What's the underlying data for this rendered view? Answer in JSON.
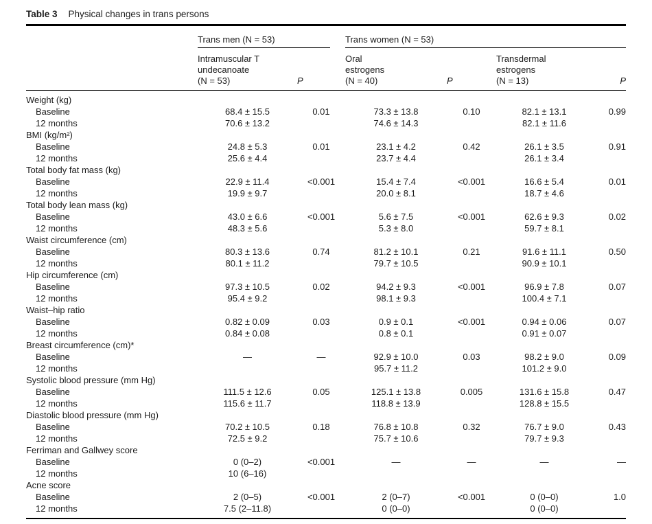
{
  "caption": {
    "label": "Table 3",
    "title": "Physical changes in trans persons"
  },
  "table": {
    "groups": [
      "Trans men (N = 53)",
      "Trans women (N = 53)"
    ],
    "columns": [
      "Intramuscular T\nundecanoate\n(N = 53)",
      "P",
      "Oral\nestrogens\n(N = 40)",
      "P",
      "Transdermal\nestrogens\n(N = 13)",
      "P"
    ],
    "rows": [
      {
        "type": "section",
        "label": "Weight (kg)"
      },
      {
        "type": "data",
        "label": "Baseline",
        "cells": [
          "68.4 ± 15.5",
          "0.01",
          "73.3 ± 13.8",
          "0.10",
          "82.1 ± 13.1",
          "0.99"
        ]
      },
      {
        "type": "data",
        "label": "12 months",
        "cells": [
          "70.6 ± 13.2",
          "",
          "74.6 ± 14.3",
          "",
          "82.1 ± 11.6",
          ""
        ]
      },
      {
        "type": "section",
        "label": "BMI (kg/m²)"
      },
      {
        "type": "data",
        "label": "Baseline",
        "cells": [
          "24.8 ± 5.3",
          "0.01",
          "23.1 ± 4.2",
          "0.42",
          "26.1 ± 3.5",
          "0.91"
        ]
      },
      {
        "type": "data",
        "label": "12 months",
        "cells": [
          "25.6 ± 4.4",
          "",
          "23.7 ± 4.4",
          "",
          "26.1 ± 3.4",
          ""
        ]
      },
      {
        "type": "section",
        "label": "Total body fat mass (kg)"
      },
      {
        "type": "data",
        "label": "Baseline",
        "cells": [
          "22.9 ± 11.4",
          "<0.001",
          "15.4 ± 7.4",
          "<0.001",
          "16.6 ± 5.4",
          "0.01"
        ]
      },
      {
        "type": "data",
        "label": "12 months",
        "cells": [
          "19.9 ± 9.7",
          "",
          "20.0 ± 8.1",
          "",
          "18.7 ± 4.6",
          ""
        ]
      },
      {
        "type": "section",
        "label": "Total body lean mass (kg)"
      },
      {
        "type": "data",
        "label": "Baseline",
        "cells": [
          "43.0 ± 6.6",
          "<0.001",
          "5.6 ± 7.5",
          "<0.001",
          "62.6 ± 9.3",
          "0.02"
        ]
      },
      {
        "type": "data",
        "label": "12 months",
        "cells": [
          "48.3 ± 5.6",
          "",
          "5.3 ± 8.0",
          "",
          "59.7 ± 8.1",
          ""
        ]
      },
      {
        "type": "section",
        "label": "Waist circumference (cm)"
      },
      {
        "type": "data",
        "label": "Baseline",
        "cells": [
          "80.3 ± 13.6",
          "0.74",
          "81.2 ± 10.1",
          "0.21",
          "91.6 ± 11.1",
          "0.50"
        ]
      },
      {
        "type": "data",
        "label": "12 months",
        "cells": [
          "80.1 ± 11.2",
          "",
          "79.7 ± 10.5",
          "",
          "90.9 ± 10.1",
          ""
        ]
      },
      {
        "type": "section",
        "label": "Hip circumference (cm)"
      },
      {
        "type": "data",
        "label": "Baseline",
        "cells": [
          "97.3 ± 10.5",
          "0.02",
          "94.2 ± 9.3",
          "<0.001",
          "96.9 ± 7.8",
          "0.07"
        ]
      },
      {
        "type": "data",
        "label": "12 months",
        "cells": [
          "95.4 ± 9.2",
          "",
          "98.1 ± 9.3",
          "",
          "100.4 ± 7.1",
          ""
        ]
      },
      {
        "type": "section",
        "label": "Waist–hip ratio"
      },
      {
        "type": "data",
        "label": "Baseline",
        "cells": [
          "0.82 ± 0.09",
          "0.03",
          "0.9 ± 0.1",
          "<0.001",
          "0.94 ± 0.06",
          "0.07"
        ]
      },
      {
        "type": "data",
        "label": "12 months",
        "cells": [
          "0.84 ± 0.08",
          "",
          "0.8 ± 0.1",
          "",
          "0.91 ± 0.07",
          ""
        ]
      },
      {
        "type": "section",
        "label": "Breast circumference (cm)*"
      },
      {
        "type": "data",
        "label": "Baseline",
        "cells": [
          "—",
          "—",
          "92.9 ± 10.0",
          "0.03",
          "98.2 ± 9.0",
          "0.09"
        ]
      },
      {
        "type": "data",
        "label": "12 months",
        "cells": [
          "",
          "",
          "95.7 ± 11.2",
          "",
          "101.2 ± 9.0",
          ""
        ]
      },
      {
        "type": "section",
        "label": "Systolic blood pressure (mm Hg)"
      },
      {
        "type": "data",
        "label": "Baseline",
        "cells": [
          "111.5 ± 12.6",
          "0.05",
          "125.1 ± 13.8",
          "0.005",
          "131.6 ± 15.8",
          "0.47"
        ]
      },
      {
        "type": "data",
        "label": "12 months",
        "cells": [
          "115.6 ± 11.7",
          "",
          "118.8 ± 13.9",
          "",
          "128.8 ± 15.5",
          ""
        ]
      },
      {
        "type": "section",
        "label": "Diastolic blood pressure (mm Hg)"
      },
      {
        "type": "data",
        "label": "Baseline",
        "cells": [
          "70.2 ± 10.5",
          "0.18",
          "76.8 ± 10.8",
          "0.32",
          "76.7 ± 9.0",
          "0.43"
        ]
      },
      {
        "type": "data",
        "label": "12 months",
        "cells": [
          "72.5 ± 9.2",
          "",
          "75.7 ± 10.6",
          "",
          "79.7 ± 9.3",
          ""
        ]
      },
      {
        "type": "section",
        "label": "Ferriman and Gallwey score"
      },
      {
        "type": "data",
        "label": "Baseline",
        "cells": [
          "0 (0–2)",
          "<0.001",
          "—",
          "—",
          "—",
          "—"
        ]
      },
      {
        "type": "data",
        "label": "12 months",
        "cells": [
          "10 (6–16)",
          "",
          "",
          "",
          "",
          ""
        ]
      },
      {
        "type": "section",
        "label": "Acne score"
      },
      {
        "type": "data",
        "label": "Baseline",
        "cells": [
          "2 (0–5)",
          "<0.001",
          "2 (0–7)",
          "<0.001",
          "0 (0–0)",
          "1.0"
        ]
      },
      {
        "type": "data",
        "label": "12 months",
        "cells": [
          "7.5 (2–11.8)",
          "",
          "0 (0–0)",
          "",
          "0 (0–0)",
          ""
        ]
      }
    ]
  }
}
